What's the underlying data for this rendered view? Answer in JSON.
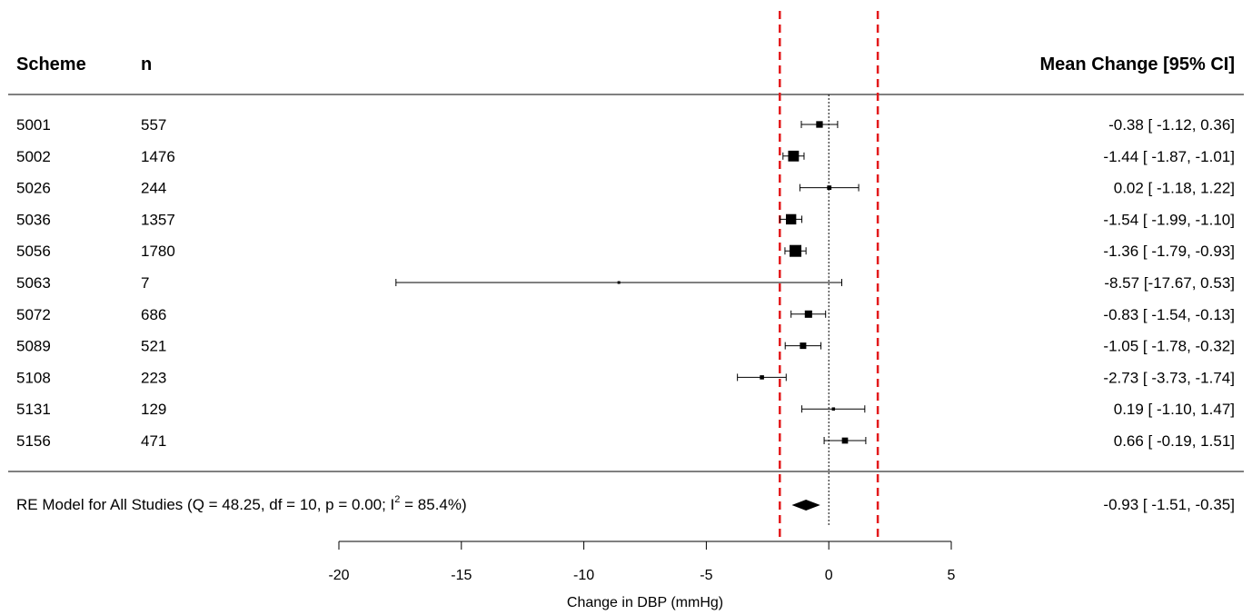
{
  "chart_data": {
    "type": "forest",
    "headers": {
      "scheme": "Scheme",
      "n": "n",
      "estimate": "Mean Change [95% CI]"
    },
    "studies": [
      {
        "scheme": "5001",
        "n": "557",
        "mean": -0.38,
        "lower": -1.12,
        "upper": 0.36,
        "label": "-0.38 [ -1.12,  0.36]"
      },
      {
        "scheme": "5002",
        "n": "1476",
        "mean": -1.44,
        "lower": -1.87,
        "upper": -1.01,
        "label": "-1.44 [ -1.87, -1.01]"
      },
      {
        "scheme": "5026",
        "n": "244",
        "mean": 0.02,
        "lower": -1.18,
        "upper": 1.22,
        "label": "0.02 [ -1.18,  1.22]"
      },
      {
        "scheme": "5036",
        "n": "1357",
        "mean": -1.54,
        "lower": -1.99,
        "upper": -1.1,
        "label": "-1.54 [ -1.99, -1.10]"
      },
      {
        "scheme": "5056",
        "n": "1780",
        "mean": -1.36,
        "lower": -1.79,
        "upper": -0.93,
        "label": "-1.36 [ -1.79, -0.93]"
      },
      {
        "scheme": "5063",
        "n": "7",
        "mean": -8.57,
        "lower": -17.67,
        "upper": 0.53,
        "label": "-8.57 [-17.67,  0.53]"
      },
      {
        "scheme": "5072",
        "n": "686",
        "mean": -0.83,
        "lower": -1.54,
        "upper": -0.13,
        "label": "-0.83 [ -1.54, -0.13]"
      },
      {
        "scheme": "5089",
        "n": "521",
        "mean": -1.05,
        "lower": -1.78,
        "upper": -0.32,
        "label": "-1.05 [ -1.78, -0.32]"
      },
      {
        "scheme": "5108",
        "n": "223",
        "mean": -2.73,
        "lower": -3.73,
        "upper": -1.74,
        "label": "-2.73 [ -3.73, -1.74]"
      },
      {
        "scheme": "5131",
        "n": "129",
        "mean": 0.19,
        "lower": -1.1,
        "upper": 1.47,
        "label": "0.19 [ -1.10,  1.47]"
      },
      {
        "scheme": "5156",
        "n": "471",
        "mean": 0.66,
        "lower": -0.19,
        "upper": 1.51,
        "label": "0.66 [ -0.19,  1.51]"
      }
    ],
    "summary": {
      "label_main": "RE Model for All Studies (Q = 48.25, df = 10, p = 0.00; I",
      "label_sup": "2",
      "label_tail": " = 85.4%)",
      "mean": -0.93,
      "lower": -1.51,
      "upper": -0.35,
      "label": "-0.93 [ -1.51, -0.35]"
    },
    "xlim": [
      -20,
      5
    ],
    "xticks": [
      -20,
      -15,
      -10,
      -5,
      0,
      5
    ],
    "xlabel": "Change in DBP (mmHg)",
    "reference_line": 0,
    "threshold_lines": [
      -2,
      2
    ],
    "colors": {
      "ink": "#000000",
      "threshold": "#e31a1c"
    }
  }
}
